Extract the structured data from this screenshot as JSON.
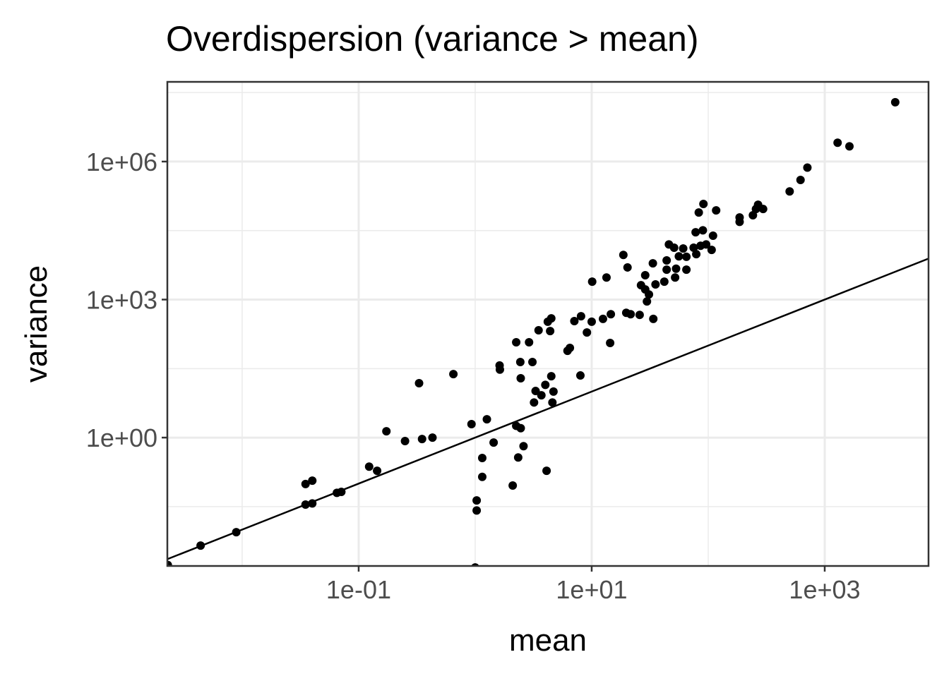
{
  "chart_data": {
    "type": "scatter",
    "title": "Overdispersion (variance > mean)",
    "x_label": "mean",
    "y_label": "variance",
    "xscale": "log",
    "yscale": "log",
    "grid": true,
    "identity_line": true,
    "color": "#000000",
    "line_color": "#000000",
    "xlim": [
      0.00228,
      7780
    ],
    "ylim": [
      0.00162,
      54000000
    ],
    "xticks": [
      {
        "value": 0.1,
        "label": "1e-01"
      },
      {
        "value": 10,
        "label": "1e+01"
      },
      {
        "value": 1000,
        "label": "1e+03"
      }
    ],
    "yticks": [
      {
        "value": 1,
        "label": "1e+00"
      },
      {
        "value": 1000,
        "label": "1e+03"
      },
      {
        "value": 1000000,
        "label": "1e+06"
      }
    ],
    "xminorticks": [
      0.01,
      1,
      100
    ],
    "yminorticks": [
      0.0316,
      31.6,
      31600,
      31600000
    ],
    "x": [
      0.0023,
      0.0044,
      0.0089,
      0.035,
      0.04,
      0.035,
      0.04,
      0.065,
      0.071,
      0.123,
      0.144,
      0.173,
      0.25,
      0.33,
      0.35,
      0.43,
      0.65,
      0.93,
      1.26,
      1.0,
      1.03,
      1.03,
      1.15,
      1.15,
      1.44,
      1.62,
      1.63,
      2.1,
      2.25,
      2.25,
      2.46,
      2.34,
      2.6,
      2.44,
      2.46,
      2.9,
      3.1,
      3.2,
      3.3,
      3.5,
      3.7,
      4.0,
      4.1,
      4.4,
      4.2,
      4.5,
      4.5,
      4.6,
      4.7,
      6.2,
      6.5,
      7.1,
      8.1,
      8.0,
      9.1,
      10,
      10.1,
      12.5,
      13.4,
      14.4,
      14.6,
      18.7,
      20.3,
      19.8,
      21.6,
      25.8,
      26.5,
      28.8,
      28.8,
      31,
      29.8,
      33.5,
      33.8,
      35.3,
      42,
      44,
      44,
      46,
      51,
      52,
      53,
      56,
      61,
      65,
      65,
      75,
      79,
      78,
      83,
      90,
      91,
      86,
      96,
      107,
      110,
      117,
      186,
      186,
      242,
      257,
      268,
      296,
      500,
      620,
      710,
      1290,
      1630,
      4030
    ],
    "y": [
      0.0017,
      0.0045,
      0.0088,
      0.098,
      0.116,
      0.035,
      0.037,
      0.063,
      0.066,
      0.234,
      0.19,
      1.37,
      0.84,
      15.2,
      0.93,
      1.0,
      24,
      1.96,
      2.5,
      0.0015,
      0.043,
      0.026,
      0.36,
      0.14,
      0.78,
      37,
      30,
      0.091,
      118,
      1.8,
      1.6,
      0.37,
      0.65,
      44,
      19.5,
      118,
      44,
      5.8,
      10.3,
      215,
      8.3,
      14,
      0.19,
      207,
      330,
      390,
      21.6,
      5.8,
      10,
      77,
      89,
      340,
      435,
      22.4,
      193,
      330,
      2450,
      380,
      3020,
      114,
      480,
      9330,
      5000,
      515,
      480,
      465,
      2050,
      3380,
      1660,
      1290,
      910,
      6150,
      380,
      2140,
      2450,
      7100,
      4470,
      15800,
      13400,
      3020,
      4700,
      8700,
      12900,
      8500,
      4470,
      13400,
      9700,
      29000,
      78000,
      32000,
      120000,
      14800,
      15800,
      12000,
      24500,
      87000,
      61000,
      49000,
      68000,
      93000,
      115000,
      93000,
      224000,
      398000,
      740000,
      2570000,
      2140000,
      19500000
    ]
  }
}
